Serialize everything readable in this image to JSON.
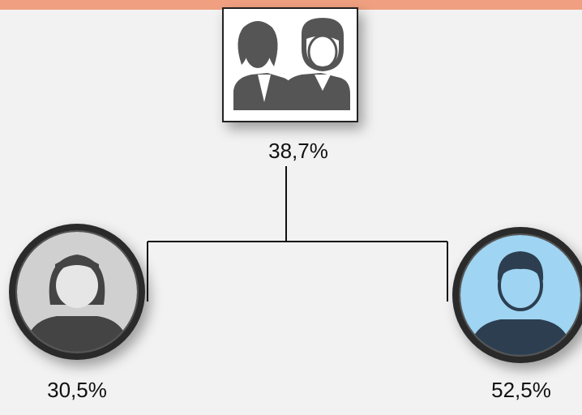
{
  "nodes": [
    {
      "label": "38,7%"
    },
    {
      "label": "30,5%"
    },
    {
      "label": "52,5%"
    }
  ]
}
